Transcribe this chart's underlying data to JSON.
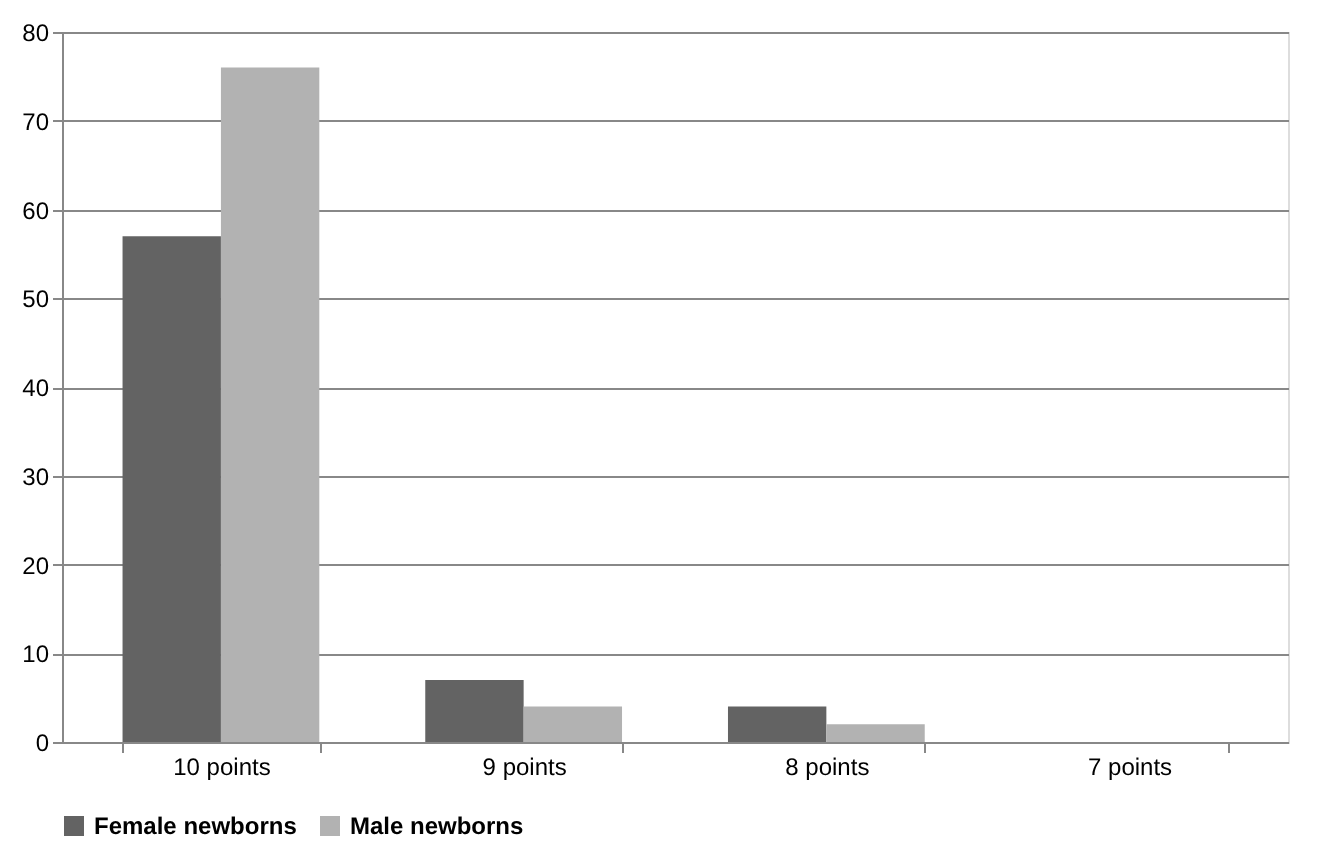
{
  "chart_data": {
    "type": "bar",
    "categories": [
      "10 points",
      "9 points",
      "8 points",
      "7 points"
    ],
    "series": [
      {
        "name": "Female newborns",
        "color": "#636363",
        "values": [
          57,
          7,
          4,
          0
        ]
      },
      {
        "name": "Male newborns",
        "color": "#b2b2b2",
        "values": [
          76,
          4,
          2,
          0
        ]
      }
    ],
    "ylim": [
      0,
      80
    ],
    "yticks": [
      0,
      10,
      20,
      30,
      40,
      50,
      60,
      70,
      80
    ],
    "grid": "y",
    "legend": "bottom"
  }
}
